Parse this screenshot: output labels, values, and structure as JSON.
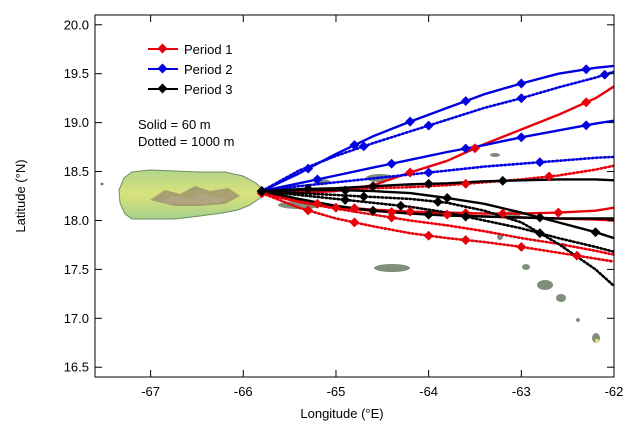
{
  "chart_data": {
    "type": "line",
    "xlabel": "Longitude (°E)",
    "ylabel": "Latitude (°N)",
    "xlim": [
      -67.6,
      -62
    ],
    "ylim": [
      16.4,
      20.1
    ],
    "x_ticks": [
      -67,
      -66,
      -65,
      -64,
      -63,
      -62
    ],
    "x_tick_labels": [
      "-67",
      "-66",
      "-65",
      "-64",
      "-63",
      "-62"
    ],
    "y_ticks": [
      16.5,
      17.0,
      17.5,
      18.0,
      18.5,
      19.0,
      19.5,
      20.0
    ],
    "y_tick_labels": [
      "16.5",
      "17.0",
      "17.5",
      "18.0",
      "18.5",
      "19.0",
      "19.5",
      "20.0"
    ],
    "legend": {
      "position": "top-left",
      "entries": [
        {
          "label": "Period 1",
          "color": "#e8000b"
        },
        {
          "label": "Period 2",
          "color": "#0000e0"
        },
        {
          "label": "Period 3",
          "color": "#000000"
        }
      ]
    },
    "annotations": [
      "Solid = 60 m",
      "Dotted = 1000 m"
    ],
    "series": [
      {
        "name": "Period 1",
        "color": "#e8000b",
        "style": "solid",
        "x": [
          -65.8,
          -65.4,
          -65.0,
          -64.6,
          -64.2,
          -63.8,
          -63.4,
          -63.0,
          -62.6,
          -62.2,
          -62.0
        ],
        "y": [
          18.28,
          18.28,
          18.3,
          18.36,
          18.49,
          18.61,
          18.78,
          18.93,
          19.08,
          19.25,
          19.37
        ],
        "marker_x": [
          -64.2,
          -63.5,
          -62.3
        ]
      },
      {
        "name": "Period 1",
        "color": "#e8000b",
        "style": "solid",
        "x": [
          -65.8,
          -65.4,
          -65.0,
          -64.6,
          -64.2,
          -63.8,
          -63.4,
          -63.0,
          -62.6,
          -62.2,
          -62.0
        ],
        "y": [
          18.28,
          18.2,
          18.14,
          18.11,
          18.09,
          18.08,
          18.07,
          18.07,
          18.08,
          18.1,
          18.13
        ],
        "marker_x": [
          -65.2,
          -64.8,
          -64.2,
          -63.6,
          -63.2,
          -62.6
        ]
      },
      {
        "name": "Period 1",
        "color": "#e8000b",
        "style": "solid",
        "x": [
          -65.8,
          -65.4,
          -65.0,
          -64.6,
          -64.2,
          -63.8,
          -63.4,
          -63.0,
          -62.6,
          -62.2,
          -62.0
        ],
        "y": [
          18.28,
          18.19,
          18.13,
          18.1,
          18.07,
          18.06,
          18.04,
          18.03,
          18.02,
          18.01,
          18.0
        ],
        "marker_x": [
          -65.0,
          -64.4,
          -63.8
        ]
      },
      {
        "name": "Period 1",
        "color": "#e8000b",
        "style": "dotted",
        "x": [
          -65.8,
          -65.4,
          -65.0,
          -64.6,
          -64.2,
          -63.8,
          -63.4,
          -63.0,
          -62.6,
          -62.2,
          -62.0
        ],
        "y": [
          18.28,
          18.3,
          18.32,
          18.33,
          18.34,
          18.36,
          18.39,
          18.42,
          18.46,
          18.52,
          18.56
        ],
        "marker_x": [
          -63.6,
          -62.7
        ]
      },
      {
        "name": "Period 1",
        "color": "#e8000b",
        "style": "dotted",
        "x": [
          -65.8,
          -65.4,
          -65.0,
          -64.6,
          -64.2,
          -63.8,
          -63.4,
          -63.0,
          -62.6,
          -62.2,
          -62.0
        ],
        "y": [
          18.28,
          18.13,
          18.02,
          17.94,
          17.87,
          17.82,
          17.78,
          17.73,
          17.67,
          17.61,
          17.58
        ],
        "marker_x": [
          -65.3,
          -64.8,
          -64.0,
          -63.6,
          -63.0,
          -62.4
        ]
      },
      {
        "name": "Period 1",
        "color": "#e8000b",
        "style": "dotted",
        "x": [
          -65.8,
          -65.4,
          -65.0,
          -64.6,
          -64.2,
          -63.8,
          -63.4,
          -63.0,
          -62.6,
          -62.2,
          -62.0
        ],
        "y": [
          18.28,
          18.19,
          18.12,
          18.06,
          18.0,
          17.95,
          17.89,
          17.82,
          17.76,
          17.69,
          17.65
        ],
        "marker_x": [
          -64.4
        ]
      },
      {
        "name": "Period 2",
        "color": "#0000e0",
        "style": "solid",
        "x": [
          -65.8,
          -65.4,
          -65.0,
          -64.6,
          -64.2,
          -63.8,
          -63.4,
          -63.0,
          -62.6,
          -62.2,
          -62.0
        ],
        "y": [
          18.3,
          18.48,
          18.68,
          18.86,
          19.01,
          19.15,
          19.29,
          19.4,
          19.5,
          19.56,
          19.58
        ],
        "marker_x": [
          -65.3,
          -64.8,
          -64.2,
          -63.6,
          -63.0,
          -62.3
        ]
      },
      {
        "name": "Period 2",
        "color": "#0000e0",
        "style": "solid",
        "x": [
          -65.8,
          -65.4,
          -65.0,
          -64.6,
          -64.2,
          -63.8,
          -63.4,
          -63.0,
          -62.6,
          -62.2,
          -62.0
        ],
        "y": [
          18.3,
          18.38,
          18.46,
          18.54,
          18.62,
          18.7,
          18.77,
          18.85,
          18.92,
          18.99,
          19.02
        ],
        "marker_x": [
          -65.2,
          -64.4,
          -63.6,
          -63.0,
          -62.3
        ]
      },
      {
        "name": "Period 2",
        "color": "#0000e0",
        "style": "dotted",
        "x": [
          -65.8,
          -65.4,
          -65.0,
          -64.6,
          -64.2,
          -63.8,
          -63.4,
          -63.0,
          -62.6,
          -62.2,
          -62.0
        ],
        "y": [
          18.3,
          18.51,
          18.66,
          18.79,
          18.91,
          19.03,
          19.15,
          19.25,
          19.36,
          19.46,
          19.52
        ],
        "marker_x": [
          -64.7,
          -64.0,
          -63.0,
          -62.1
        ]
      },
      {
        "name": "Period 2",
        "color": "#0000e0",
        "style": "dotted",
        "x": [
          -65.8,
          -65.4,
          -65.0,
          -64.6,
          -64.2,
          -63.8,
          -63.4,
          -63.0,
          -62.6,
          -62.2,
          -62.0
        ],
        "y": [
          18.3,
          18.35,
          18.39,
          18.43,
          18.47,
          18.51,
          18.55,
          18.58,
          18.61,
          18.64,
          18.65
        ],
        "marker_x": [
          -64.0,
          -62.8
        ]
      },
      {
        "name": "Period 3",
        "color": "#000000",
        "style": "solid",
        "x": [
          -65.8,
          -65.4,
          -65.0,
          -64.6,
          -64.2,
          -63.8,
          -63.4,
          -63.0,
          -62.6,
          -62.2,
          -62.0
        ],
        "y": [
          18.3,
          18.32,
          18.33,
          18.35,
          18.37,
          18.38,
          18.4,
          18.41,
          18.42,
          18.42,
          18.41
        ],
        "marker_x": [
          -65.3,
          -64.6,
          -64.0,
          -63.2
        ]
      },
      {
        "name": "Period 3",
        "color": "#000000",
        "style": "solid",
        "x": [
          -65.8,
          -65.4,
          -65.0,
          -64.6,
          -64.2,
          -63.8,
          -63.4,
          -63.0,
          -62.6,
          -62.2,
          -62.0
        ],
        "y": [
          18.3,
          18.31,
          18.31,
          18.3,
          18.28,
          18.23,
          18.17,
          18.08,
          17.98,
          17.88,
          17.82
        ],
        "marker_x": [
          -64.9,
          -63.8,
          -62.8,
          -62.2
        ]
      },
      {
        "name": "Period 3",
        "color": "#000000",
        "style": "solid",
        "x": [
          -65.8,
          -65.4,
          -65.0,
          -64.6,
          -64.2,
          -63.8,
          -63.4,
          -63.0,
          -62.6,
          -62.2,
          -62.0
        ],
        "y": [
          18.3,
          18.22,
          18.15,
          18.1,
          18.07,
          18.05,
          18.04,
          18.03,
          18.02,
          18.02,
          18.02
        ],
        "marker_x": [
          -64.6,
          -64.0
        ]
      },
      {
        "name": "Period 3",
        "color": "#000000",
        "style": "dotted",
        "x": [
          -65.8,
          -65.4,
          -65.0,
          -64.6,
          -64.2,
          -63.8,
          -63.4,
          -63.0,
          -62.6,
          -62.2,
          -62.0
        ],
        "y": [
          18.3,
          18.26,
          18.22,
          18.18,
          18.14,
          18.08,
          18.0,
          17.92,
          17.82,
          17.73,
          17.68
        ],
        "marker_x": [
          -64.9,
          -64.3,
          -63.6
        ]
      },
      {
        "name": "Period 3",
        "color": "#000000",
        "style": "dotted",
        "x": [
          -65.8,
          -65.4,
          -65.0,
          -64.6,
          -64.2,
          -63.8,
          -63.4,
          -63.0,
          -62.6,
          -62.2,
          -62.0
        ],
        "y": [
          18.3,
          18.28,
          18.26,
          18.24,
          18.22,
          18.18,
          18.1,
          17.98,
          17.76,
          17.5,
          17.33
        ],
        "marker_x": [
          -64.7,
          -63.9,
          -62.8
        ]
      }
    ]
  }
}
